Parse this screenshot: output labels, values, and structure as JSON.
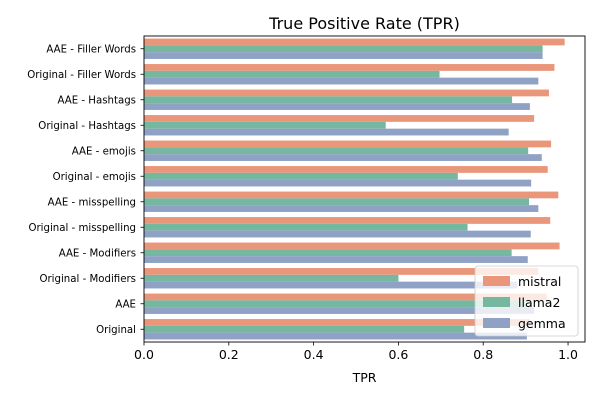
{
  "chart_data": {
    "type": "bar",
    "orientation": "horizontal",
    "title": "True Positive Rate (TPR)",
    "xlabel": "TPR",
    "ylabel": "",
    "xlim": [
      0,
      1.04
    ],
    "xticks": [
      0.0,
      0.2,
      0.4,
      0.6,
      0.8,
      1.0
    ],
    "xtick_labels": [
      "0.0",
      "0.2",
      "0.4",
      "0.6",
      "0.8",
      "1.0"
    ],
    "grid": false,
    "legend_position": "lower-right",
    "categories": [
      "AAE - Filler Words",
      "Original - Filler Words",
      "AAE - Hashtags",
      "Original - Hashtags",
      "AAE - emojis",
      "Original - emojis",
      "AAE - misspelling",
      "Original - misspelling",
      "AAE - Modifiers",
      "Original - Modifiers",
      "AAE",
      "Original"
    ],
    "series": [
      {
        "name": "mistral",
        "color": "#e9967a",
        "values": [
          0.992,
          0.968,
          0.955,
          0.92,
          0.96,
          0.952,
          0.977,
          0.958,
          0.98,
          0.93,
          0.95,
          0.91
        ]
      },
      {
        "name": "llama2",
        "color": "#76b7a0",
        "values": [
          0.94,
          0.697,
          0.868,
          0.57,
          0.906,
          0.74,
          0.908,
          0.763,
          0.867,
          0.6,
          0.9,
          0.755
        ]
      },
      {
        "name": "gemma",
        "color": "#8fa1c4",
        "values": [
          0.94,
          0.93,
          0.91,
          0.86,
          0.938,
          0.913,
          0.93,
          0.912,
          0.905,
          0.88,
          0.92,
          0.903
        ]
      }
    ]
  }
}
